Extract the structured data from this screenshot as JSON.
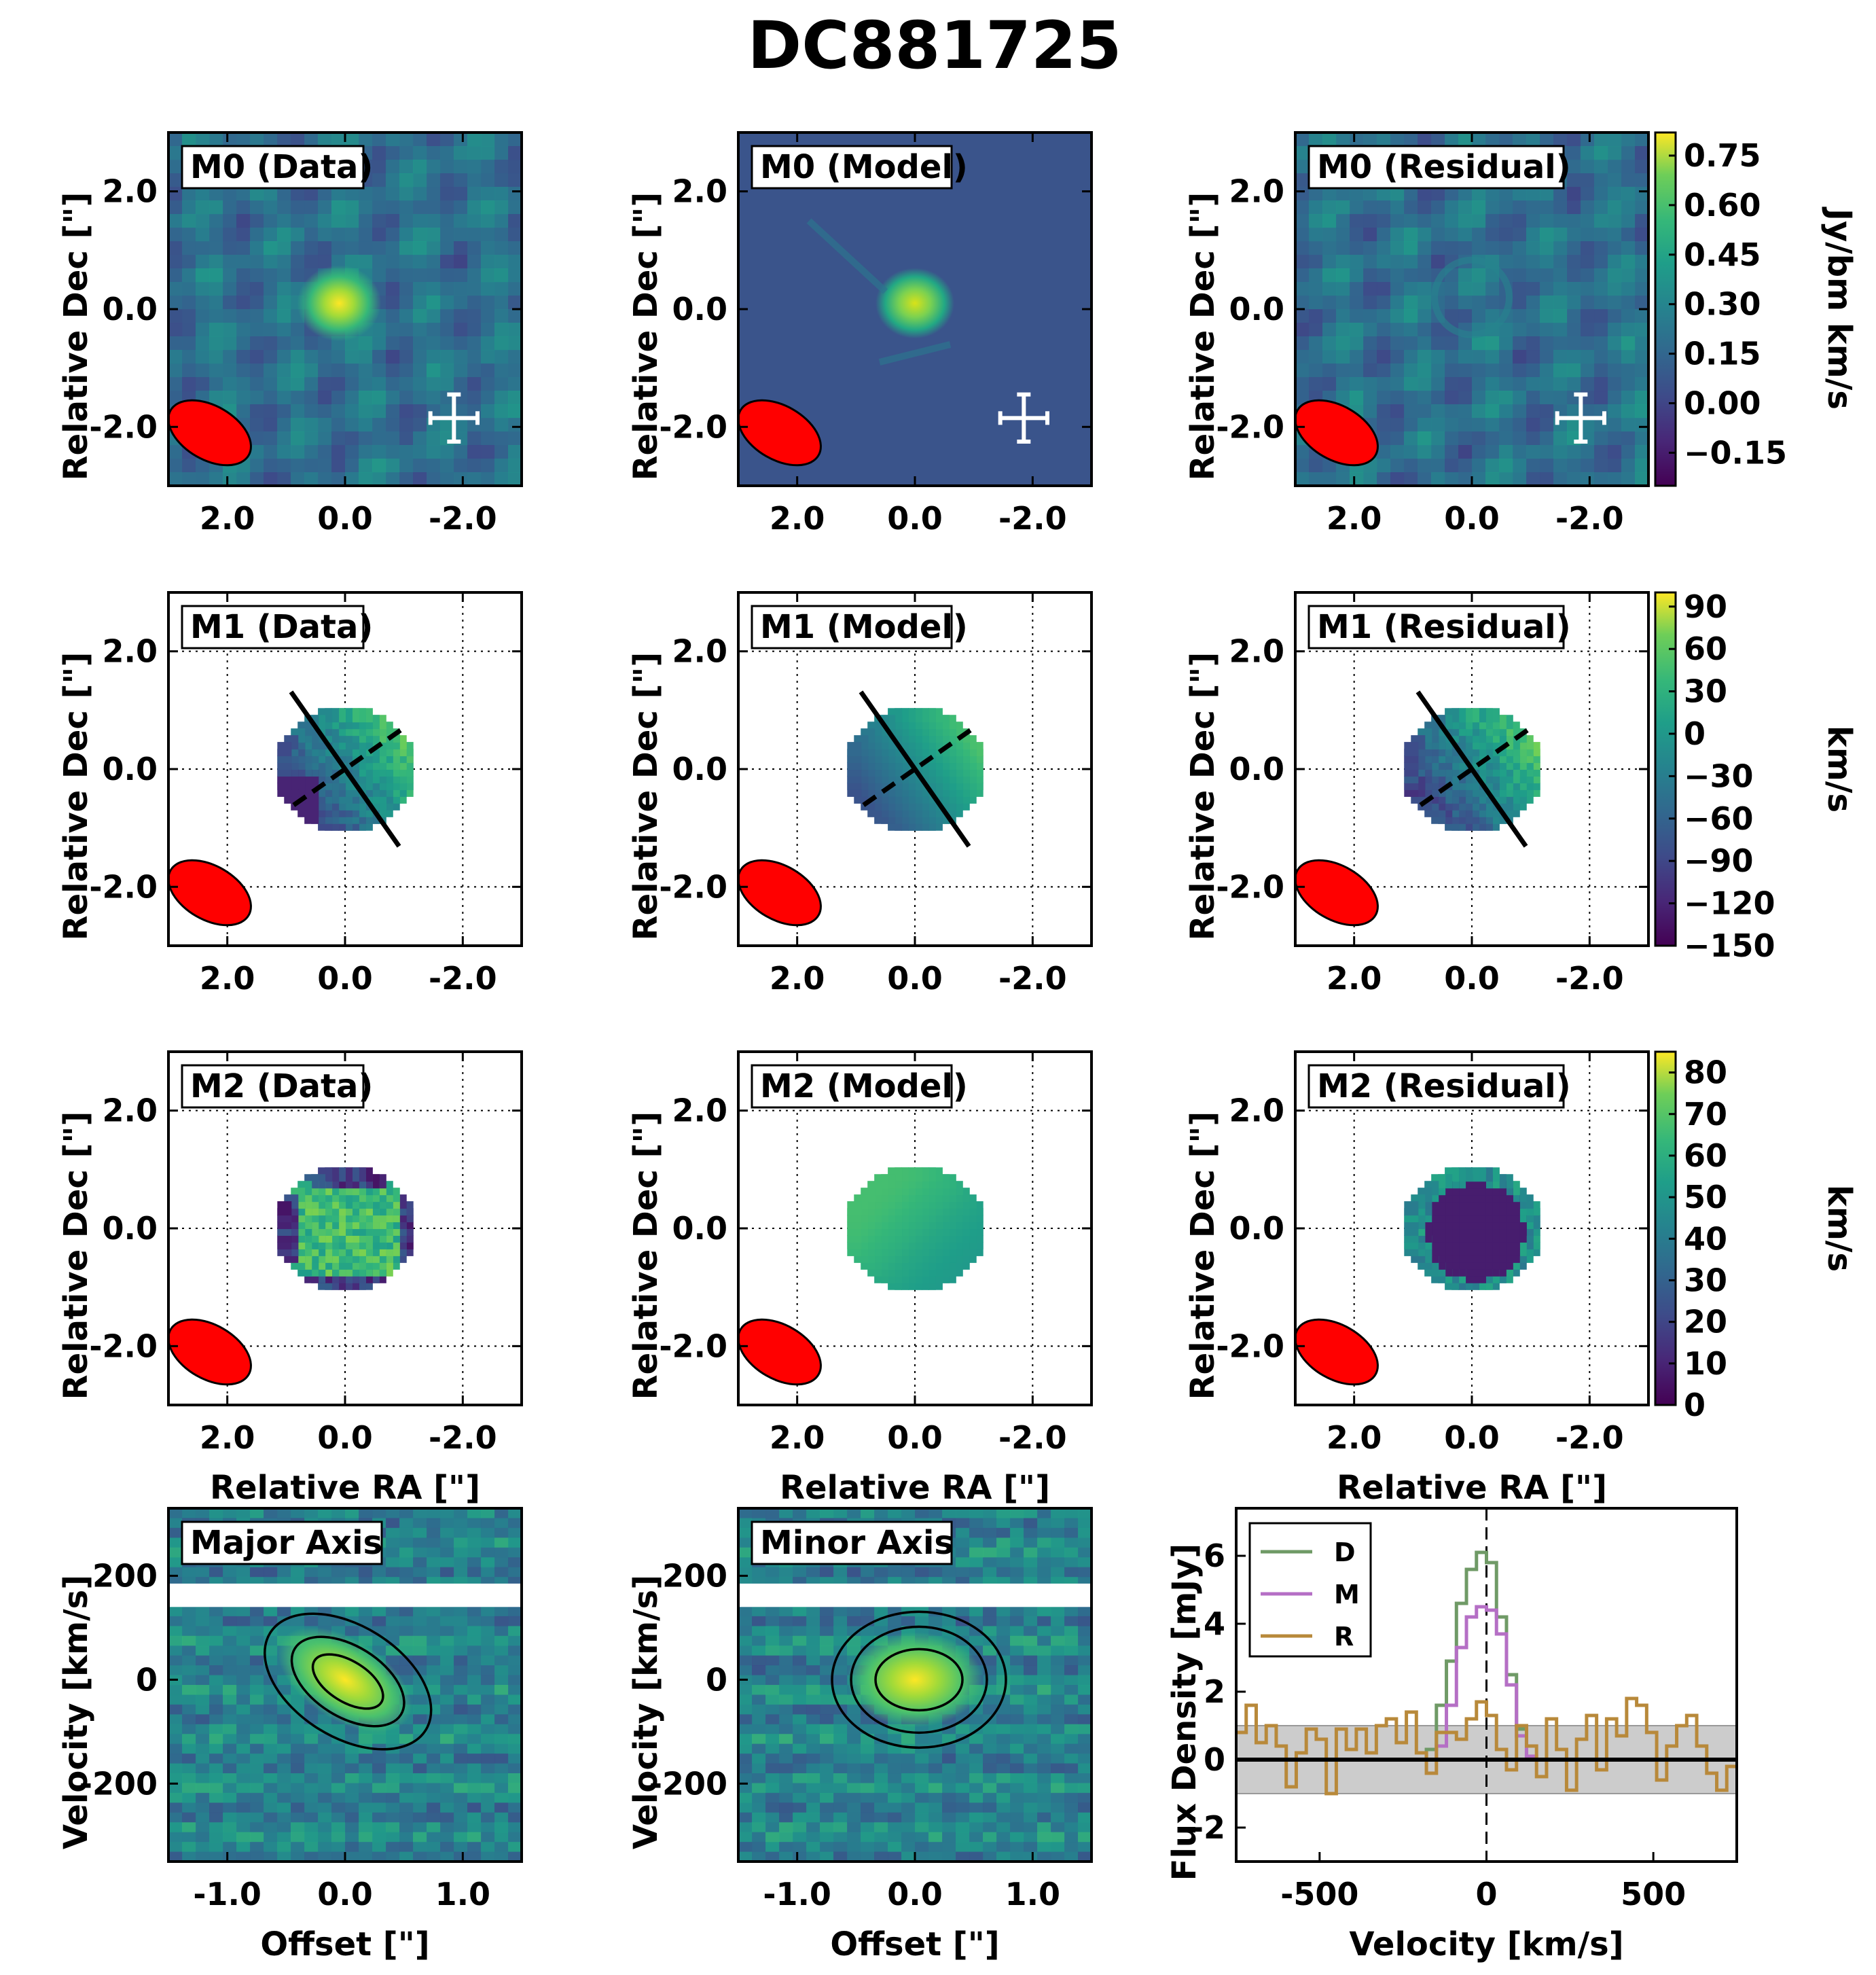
{
  "figure_title": "DC881725",
  "colors": {
    "beam": "#ff0000",
    "data_line": "#6f9a66",
    "model_line": "#b56fc5",
    "residual_line": "#b8893a",
    "noise_band": "#cccccc",
    "viridis_low": "#440154",
    "viridis_high": "#fde725"
  },
  "labels": {
    "panel_titles": [
      [
        "M0 (Data)",
        "M0 (Model)",
        "M0 (Residual)"
      ],
      [
        "M1 (Data)",
        "M1 (Model)",
        "M1 (Residual)"
      ],
      [
        "M2 (Data)",
        "M2 (Model)",
        "M2 (Residual)"
      ],
      [
        "Major Axis",
        "Minor Axis"
      ]
    ],
    "dec_label": "Relative Dec [\"]",
    "ra_label": "Relative RA [\"]",
    "velocity_label": "Velocity [km/s]",
    "offset_label": "Offset [\"]",
    "flux_label": "Flux Density [mJy]",
    "spec_velocity_label": "Velocity [km/s]",
    "colorbar_labels": [
      "Jy/bm km/s",
      "km/s",
      "km/s"
    ]
  },
  "chart_data": [
    {
      "type": "heatmap",
      "name": "moment maps",
      "xlabel": "Relative RA [\"]",
      "ylabel": "Relative Dec [\"]",
      "xlim": [
        3.0,
        -3.0
      ],
      "ylim": [
        -3.0,
        3.0
      ],
      "xticks": [
        "2.0",
        "0.0",
        "-2.0"
      ],
      "yticks": [
        "2.0",
        "0.0",
        "-2.0"
      ],
      "colorbars": [
        {
          "quantity": "M0",
          "label": "Jy/bm km/s",
          "range": [
            -0.25,
            0.82
          ],
          "ticks": [
            "0.75",
            "0.60",
            "0.45",
            "0.30",
            "0.15",
            "0.00",
            "−0.15"
          ]
        },
        {
          "quantity": "M1",
          "label": "km/s",
          "range": [
            -150,
            100
          ],
          "ticks": [
            "90",
            "60",
            "30",
            "0",
            "−30",
            "−60",
            "−90",
            "−120",
            "−150"
          ]
        },
        {
          "quantity": "M2",
          "label": "km/s",
          "range": [
            0,
            85
          ],
          "ticks": [
            "80",
            "70",
            "60",
            "50",
            "40",
            "30",
            "20",
            "10",
            "0"
          ]
        }
      ],
      "source_center": [
        0.0,
        0.0
      ],
      "beam": {
        "ra": 2.3,
        "dec": -2.1,
        "major": 1.3,
        "minor": 0.8,
        "pa_deg": -30
      },
      "error_cross": {
        "ra": -1.85,
        "dec": -1.85,
        "size": 0.4
      },
      "kinematic_axes": {
        "major_pa_deg": 35,
        "minor_pa_deg": -55,
        "half_length": 1.6
      }
    },
    {
      "type": "heatmap",
      "name": "position-velocity diagrams",
      "panels": [
        "Major Axis",
        "Minor Axis"
      ],
      "xlabel": "Offset [\"]",
      "ylabel": "Velocity [km/s]",
      "xlim": [
        -1.5,
        1.5
      ],
      "ylim": [
        -350,
        330
      ],
      "xticks": [
        "-1.0",
        "0.0",
        "1.0"
      ],
      "yticks": [
        "200",
        "0",
        "-200"
      ],
      "blank_band": [
        140,
        185
      ],
      "contour_levels": 3
    },
    {
      "type": "line",
      "name": "spectrum",
      "xlabel": "Velocity [km/s]",
      "ylabel": "Flux Density [mJy]",
      "xlim": [
        -750,
        750
      ],
      "ylim": [
        -3,
        7.4
      ],
      "xticks": [
        "-500",
        "0",
        "500"
      ],
      "yticks": [
        "6",
        "4",
        "2",
        "0",
        "-2"
      ],
      "noise_band": [
        -1,
        1
      ],
      "zero_line": 0,
      "legend_position": "top-left",
      "x": [
        -750,
        -720,
        -690,
        -660,
        -630,
        -600,
        -570,
        -540,
        -510,
        -480,
        -450,
        -420,
        -390,
        -360,
        -330,
        -300,
        -270,
        -240,
        -210,
        -180,
        -150,
        -120,
        -90,
        -60,
        -30,
        0,
        30,
        60,
        90,
        120,
        150,
        180,
        210,
        240,
        270,
        300,
        330,
        360,
        390,
        420,
        450,
        480,
        510,
        540,
        570,
        600,
        630,
        660,
        690,
        720
      ],
      "series": [
        {
          "name": "D",
          "values": [
            0,
            0,
            0,
            0,
            0,
            0,
            0,
            0,
            0,
            0,
            0,
            0,
            0,
            0,
            0,
            0,
            0,
            0,
            0,
            0.3,
            1.6,
            2.9,
            4.6,
            5.6,
            6.1,
            5.8,
            4.2,
            2.5,
            0.9,
            0,
            0,
            0,
            0,
            0,
            0,
            0,
            0,
            0,
            0,
            0,
            0,
            0,
            0,
            0,
            0,
            0,
            0,
            0,
            0,
            0
          ]
        },
        {
          "name": "M",
          "values": [
            0,
            0,
            0,
            0,
            0,
            0,
            0,
            0,
            0,
            0,
            0,
            0,
            0,
            0,
            0,
            0,
            0,
            0,
            0,
            0,
            0.4,
            1.6,
            3.3,
            4.2,
            4.5,
            4.4,
            3.7,
            2.2,
            0.7,
            0.1,
            0,
            0,
            0,
            0,
            0,
            0,
            0,
            0,
            0,
            0,
            0,
            0,
            0,
            0,
            0,
            0,
            0,
            0,
            0,
            0
          ]
        },
        {
          "name": "R",
          "values": [
            0.8,
            1.6,
            0.5,
            1.0,
            0.4,
            -0.8,
            0.2,
            0.9,
            0.6,
            -1.0,
            0.9,
            0.3,
            0.9,
            0.2,
            1.0,
            1.2,
            0.5,
            1.4,
            0.2,
            -0.4,
            0.8,
            0.8,
            0.6,
            1.2,
            1.7,
            1.3,
            0.3,
            -0.3,
            1.0,
            0.4,
            -0.5,
            1.2,
            0.3,
            -0.9,
            0.6,
            1.3,
            -0.3,
            1.2,
            0.7,
            1.8,
            1.6,
            0.8,
            -0.6,
            0.4,
            1.0,
            1.3,
            0.4,
            -0.4,
            -0.9,
            -0.2
          ]
        }
      ]
    }
  ]
}
